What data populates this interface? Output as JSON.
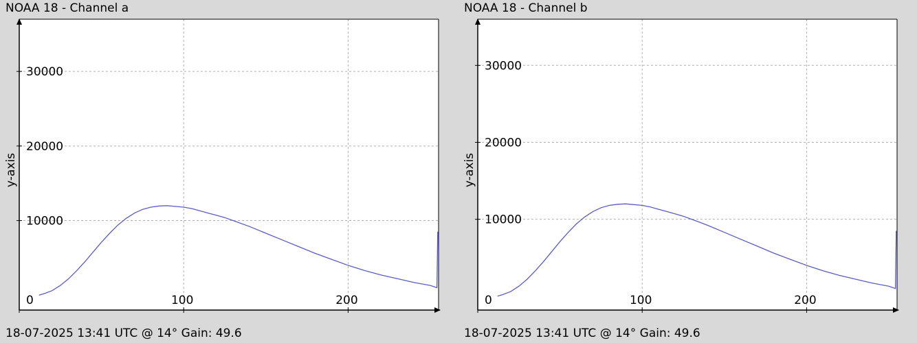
{
  "chart_data": [
    {
      "type": "line",
      "title": "NOAA 18 - Channel a",
      "footer": "18-07-2025 13:41 UTC @ 14° Gain: 49.6",
      "xlabel": "",
      "ylabel": "y-axis",
      "xlim": [
        0,
        255
      ],
      "ylim": [
        -2000,
        37000
      ],
      "xticks": [
        0,
        100,
        200
      ],
      "yticks": [
        10000,
        20000,
        30000
      ],
      "xgrid": [
        100,
        200,
        255
      ],
      "ygrid": [
        10000,
        20000,
        30000
      ],
      "grid": true,
      "color": "#5b5bc8",
      "series": [
        {
          "x": [
            12,
            15,
            20,
            25,
            30,
            35,
            40,
            45,
            50,
            55,
            60,
            65,
            70,
            75,
            80,
            85,
            90,
            95,
            100,
            105,
            110,
            115,
            120,
            125,
            130,
            140,
            150,
            160,
            170,
            180,
            190,
            200,
            210,
            220,
            230,
            240,
            250,
            254,
            254.5
          ],
          "y": [
            0,
            200,
            600,
            1300,
            2200,
            3300,
            4500,
            5800,
            7100,
            8300,
            9400,
            10300,
            11000,
            11500,
            11800,
            11950,
            12000,
            11900,
            11800,
            11600,
            11300,
            11000,
            10700,
            10400,
            10000,
            9200,
            8300,
            7400,
            6500,
            5600,
            4800,
            4000,
            3300,
            2700,
            2200,
            1700,
            1300,
            1000,
            8500
          ]
        }
      ]
    },
    {
      "type": "line",
      "title": "NOAA 18 - Channel b",
      "footer": "18-07-2025 13:41 UTC @ 14° Gain: 49.6",
      "xlabel": "",
      "ylabel": "y-axis",
      "xlim": [
        0,
        255
      ],
      "ylim": [
        -1800,
        36000
      ],
      "xticks": [
        0,
        100,
        200
      ],
      "yticks": [
        10000,
        20000,
        30000
      ],
      "xgrid": [
        100,
        200,
        255
      ],
      "ygrid": [
        10000,
        20000,
        30000
      ],
      "grid": true,
      "color": "#5b5bc8",
      "series": [
        {
          "x": [
            12,
            15,
            20,
            25,
            30,
            35,
            40,
            45,
            50,
            55,
            60,
            65,
            70,
            75,
            80,
            85,
            90,
            95,
            100,
            105,
            110,
            115,
            120,
            125,
            130,
            140,
            150,
            160,
            170,
            180,
            190,
            200,
            210,
            220,
            230,
            240,
            250,
            254,
            254.5
          ],
          "y": [
            0,
            200,
            600,
            1300,
            2200,
            3300,
            4500,
            5800,
            7100,
            8300,
            9400,
            10300,
            11000,
            11500,
            11800,
            11950,
            12000,
            11900,
            11800,
            11600,
            11300,
            11000,
            10700,
            10400,
            10000,
            9200,
            8300,
            7400,
            6500,
            5600,
            4800,
            4000,
            3300,
            2700,
            2200,
            1700,
            1300,
            1000,
            8500
          ]
        }
      ]
    }
  ]
}
